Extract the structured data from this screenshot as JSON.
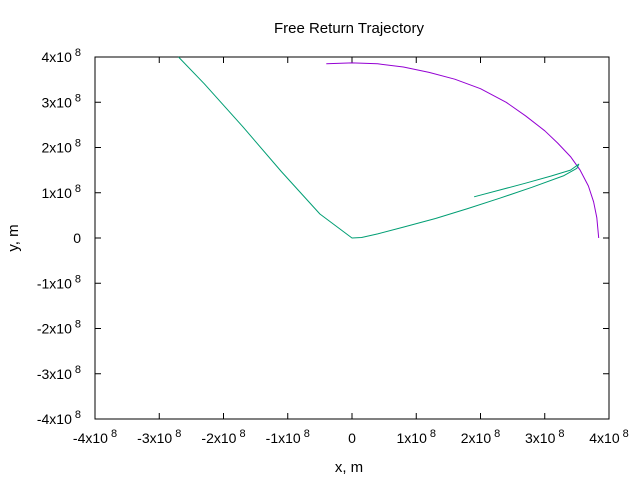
{
  "chart_data": {
    "type": "line",
    "title": "Free Return Trajectory",
    "xlabel": "x, m",
    "ylabel": "y, m",
    "xlim": [
      -400000000,
      400000000
    ],
    "ylim": [
      -400000000,
      400000000
    ],
    "grid": false,
    "legend": "none",
    "x_ticks": [
      {
        "value": -400000000,
        "mantissa": "-4x10",
        "exponent": "8"
      },
      {
        "value": -300000000,
        "mantissa": "-3x10",
        "exponent": "8"
      },
      {
        "value": -200000000,
        "mantissa": "-2x10",
        "exponent": "8"
      },
      {
        "value": -100000000,
        "mantissa": "-1x10",
        "exponent": "8"
      },
      {
        "value": 0,
        "mantissa": "0",
        "exponent": ""
      },
      {
        "value": 100000000,
        "mantissa": "1x10",
        "exponent": "8"
      },
      {
        "value": 200000000,
        "mantissa": "2x10",
        "exponent": "8"
      },
      {
        "value": 300000000,
        "mantissa": "3x10",
        "exponent": "8"
      },
      {
        "value": 400000000,
        "mantissa": "4x10",
        "exponent": "8"
      }
    ],
    "y_ticks": [
      {
        "value": -400000000,
        "mantissa": "-4x10",
        "exponent": "8"
      },
      {
        "value": -300000000,
        "mantissa": "-3x10",
        "exponent": "8"
      },
      {
        "value": -200000000,
        "mantissa": "-2x10",
        "exponent": "8"
      },
      {
        "value": -100000000,
        "mantissa": "-1x10",
        "exponent": "8"
      },
      {
        "value": 0,
        "mantissa": "0",
        "exponent": ""
      },
      {
        "value": 100000000,
        "mantissa": "1x10",
        "exponent": "8"
      },
      {
        "value": 200000000,
        "mantissa": "2x10",
        "exponent": "8"
      },
      {
        "value": 300000000,
        "mantissa": "3x10",
        "exponent": "8"
      },
      {
        "value": 400000000,
        "mantissa": "4x10",
        "exponent": "8"
      }
    ],
    "series": [
      {
        "color": "#9400d3",
        "x": [
          -40000000,
          0,
          40000000,
          80000000,
          120000000,
          160000000,
          200000000,
          240000000,
          270000000,
          300000000,
          320000000,
          340000000,
          355000000,
          368000000,
          376000000,
          381000000,
          384000000
        ],
        "y": [
          385000000,
          387000000,
          385000000,
          378000000,
          366000000,
          351000000,
          330000000,
          300000000,
          270000000,
          237000000,
          210000000,
          180000000,
          150000000,
          115000000,
          80000000,
          45000000,
          0
        ]
      },
      {
        "color": "#009e73",
        "x": [
          190000000,
          230000000,
          270000000,
          310000000,
          340000000,
          353000000,
          350000000,
          330000000,
          280000000,
          230000000,
          180000000,
          130000000,
          80000000,
          40000000,
          15000000,
          0,
          -50000000,
          -110000000,
          -170000000,
          -230000000,
          -270000000
        ],
        "y": [
          91000000,
          106000000,
          121000000,
          137000000,
          150000000,
          163000000,
          154000000,
          138000000,
          112000000,
          88000000,
          65000000,
          43000000,
          24000000,
          9000000,
          1000000,
          0,
          53000000,
          147000000,
          246000000,
          341000000,
          400000000
        ]
      }
    ]
  }
}
